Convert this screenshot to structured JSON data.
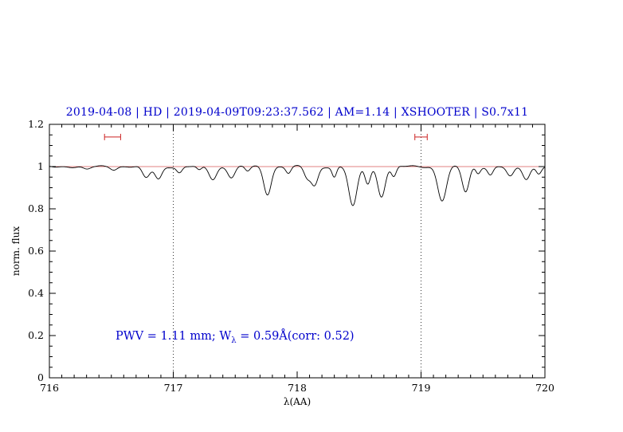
{
  "colors": {
    "accent_blue": "#0000cc",
    "accent_red": "#cc2222",
    "unity_line": "#e08080",
    "spectrum": "#000000",
    "frame": "#000000",
    "background": "#ffffff"
  },
  "chart_data": {
    "type": "line",
    "title": "2019-04-08 | HD | 2019-04-09T09:23:37.562 | AM=1.14 | XSHOOTER | S0.7x11",
    "xlabel": "λ(AA)",
    "ylabel": "norm. flux",
    "xlim": [
      716,
      720
    ],
    "ylim": [
      0,
      1.2
    ],
    "x_ticks": [
      716,
      717,
      718,
      719,
      720
    ],
    "x_tick_labels": [
      "716",
      "717",
      "718",
      "719",
      "720"
    ],
    "x_minor_step": 0.1,
    "y_ticks": [
      0,
      0.2,
      0.4,
      0.6,
      0.8,
      1,
      1.2
    ],
    "y_tick_labels": [
      "0",
      "0.2",
      "0.4",
      "0.6",
      "0.8",
      "1",
      "1.2"
    ],
    "y_minor_step": 0.05,
    "grid": false,
    "legend": "none",
    "continuum": 1.0,
    "unity_line_y": 1.0,
    "vlines": [
      717,
      719
    ],
    "markers": [
      {
        "x_center": 716.51,
        "half_width": 0.065,
        "y": 1.14
      },
      {
        "x_center": 719.0,
        "half_width": 0.05,
        "y": 1.14
      }
    ],
    "sample_step": 0.004,
    "noise": [
      [
        0.0035,
        15,
        0.5
      ],
      [
        0.0025,
        40,
        2.0
      ]
    ],
    "absorption_lines": [
      [
        716.3,
        0.015,
        0.03
      ],
      [
        716.52,
        0.012,
        0.025
      ],
      [
        716.78,
        0.055,
        0.03
      ],
      [
        716.88,
        0.06,
        0.028
      ],
      [
        717.05,
        0.03,
        0.022
      ],
      [
        717.21,
        0.02,
        0.02
      ],
      [
        717.32,
        0.06,
        0.03
      ],
      [
        717.47,
        0.05,
        0.028
      ],
      [
        717.6,
        0.022,
        0.02
      ],
      [
        717.76,
        0.13,
        0.03
      ],
      [
        717.93,
        0.03,
        0.02
      ],
      [
        718.08,
        0.05,
        0.025
      ],
      [
        718.14,
        0.09,
        0.028
      ],
      [
        718.3,
        0.05,
        0.018
      ],
      [
        718.45,
        0.19,
        0.033
      ],
      [
        718.57,
        0.08,
        0.022
      ],
      [
        718.68,
        0.14,
        0.03
      ],
      [
        718.78,
        0.05,
        0.02
      ],
      [
        719.17,
        0.16,
        0.035
      ],
      [
        719.36,
        0.12,
        0.028
      ],
      [
        719.46,
        0.03,
        0.018
      ],
      [
        719.56,
        0.04,
        0.022
      ],
      [
        719.72,
        0.05,
        0.028
      ],
      [
        719.85,
        0.06,
        0.028
      ],
      [
        719.95,
        0.03,
        0.02
      ]
    ]
  },
  "annotation": {
    "part1": "PWV = 1.11 mm; W",
    "sub": "λ",
    "part2": " = 0.59Å(corr: 0.52)"
  }
}
